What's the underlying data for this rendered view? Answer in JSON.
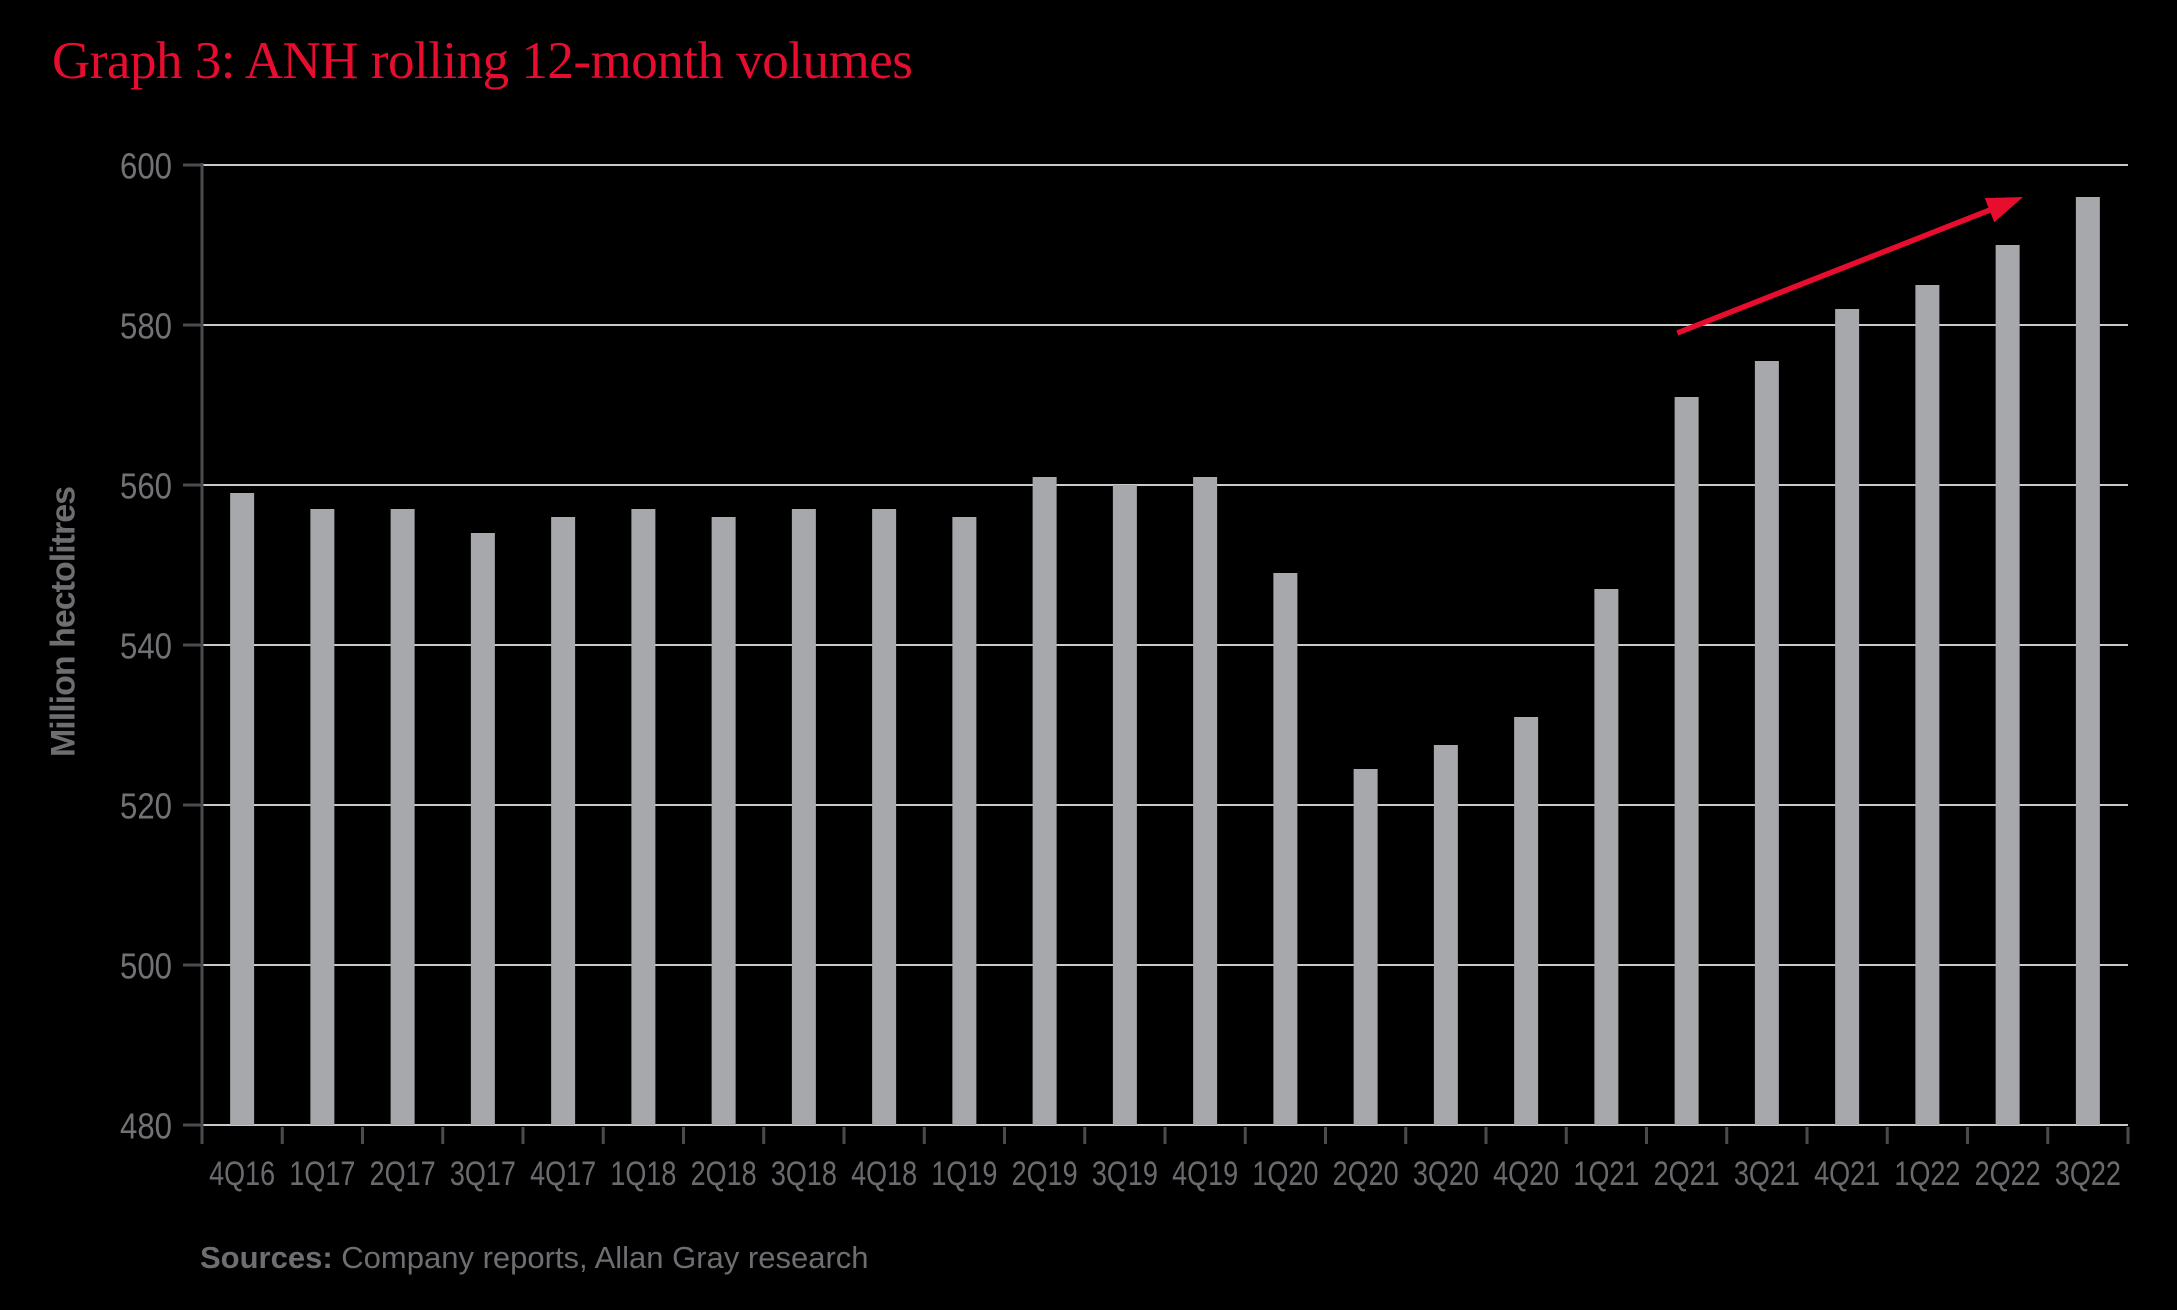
{
  "title": {
    "text": "Graph 3: ANH rolling 12-month volumes",
    "color": "#e60d2e"
  },
  "chart_data": {
    "type": "bar",
    "title": "Graph 3: ANH rolling 12-month volumes",
    "categories": [
      "4Q16",
      "1Q17",
      "2Q17",
      "3Q17",
      "4Q17",
      "1Q18",
      "2Q18",
      "3Q18",
      "4Q18",
      "1Q19",
      "2Q19",
      "3Q19",
      "4Q19",
      "1Q20",
      "2Q20",
      "3Q20",
      "4Q20",
      "1Q21",
      "2Q21",
      "3Q21",
      "4Q21",
      "1Q22",
      "2Q22",
      "3Q22"
    ],
    "values": [
      559,
      557,
      557,
      554,
      556,
      557,
      556,
      557,
      557,
      556,
      561,
      560,
      561,
      549,
      524.5,
      527.5,
      531,
      547,
      571,
      575.5,
      582,
      585,
      590,
      596
    ],
    "xlabel": "",
    "ylabel": "Million hectolitres",
    "ylim": [
      480,
      600
    ],
    "yticks": [
      480,
      500,
      520,
      540,
      560,
      580,
      600
    ],
    "grid": "horizontal",
    "legend": "none",
    "bar_color": "#a6a8ab",
    "gridline_color": "#c9cacb",
    "axis_color": "#4a4b4f",
    "tick_label_color": "#717276",
    "x_label_color": "#6a6b6f",
    "axis_title_color": "#6d6e71",
    "trend_arrow": {
      "color": "#e60d2e",
      "from_x_frac": 0.766,
      "from_value": 579,
      "to_x_frac": 0.9455,
      "to_value": 596
    }
  },
  "sources": {
    "label": "Sources:",
    "text": " Company reports, Allan Gray research",
    "color": "#6d6e71"
  }
}
